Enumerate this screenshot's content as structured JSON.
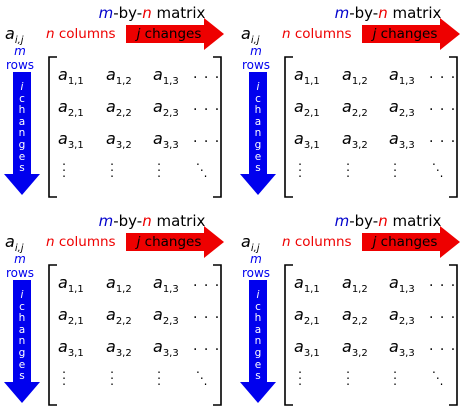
{
  "colors": {
    "red": "#ee0000",
    "blue": "#0000cc",
    "arrow_red": "#ee0000",
    "arrow_blue": "#0000ee"
  },
  "panels": [
    {
      "title": {
        "m": "m",
        "sep1": "-by-",
        "n": "n",
        "rest": " matrix"
      },
      "element": {
        "base": "a",
        "sub": "i,j"
      },
      "columns": {
        "n": "n",
        "text": " columns"
      },
      "j_changes": {
        "j": "j",
        "text": " changes"
      },
      "rows": {
        "m": "m",
        "text": "rows"
      },
      "i_changes": {
        "i": "i",
        "text": "changes"
      },
      "entries": [
        [
          "a",
          "1,1"
        ],
        [
          "a",
          "1,2"
        ],
        [
          "a",
          "1,3"
        ],
        [
          "a",
          "2,1"
        ],
        [
          "a",
          "2,2"
        ],
        [
          "a",
          "2,3"
        ],
        [
          "a",
          "3,1"
        ],
        [
          "a",
          "3,2"
        ],
        [
          "a",
          "3,3"
        ]
      ],
      "ellipsis_h": ". . .",
      "ellipsis_v": ".\n.\n.",
      "ellipsis_d": ".\n .\n  ."
    },
    {
      "title": {
        "m": "m",
        "sep1": "-by-",
        "n": "n",
        "rest": " matrix"
      },
      "element": {
        "base": "a",
        "sub": "i,j"
      },
      "columns": {
        "n": "n",
        "text": " columns"
      },
      "j_changes": {
        "j": "j",
        "text": " changes"
      },
      "rows": {
        "m": "m",
        "text": "rows"
      },
      "i_changes": {
        "i": "i",
        "text": "changes"
      },
      "entries": [
        [
          "a",
          "1,1"
        ],
        [
          "a",
          "1,2"
        ],
        [
          "a",
          "1,3"
        ],
        [
          "a",
          "2,1"
        ],
        [
          "a",
          "2,2"
        ],
        [
          "a",
          "2,3"
        ],
        [
          "a",
          "3,1"
        ],
        [
          "a",
          "3,2"
        ],
        [
          "a",
          "3,3"
        ]
      ],
      "ellipsis_h": ". . .",
      "ellipsis_v": ".\n.\n.",
      "ellipsis_d": ".\n .\n  ."
    },
    {
      "title": {
        "m": "m",
        "sep1": "-by-",
        "n": "n",
        "rest": " matrix"
      },
      "element": {
        "base": "a",
        "sub": "i,j"
      },
      "columns": {
        "n": "n",
        "text": " columns"
      },
      "j_changes": {
        "j": "j",
        "text": " changes"
      },
      "rows": {
        "m": "m",
        "text": "rows"
      },
      "i_changes": {
        "i": "i",
        "text": "changes"
      },
      "entries": [
        [
          "a",
          "1,1"
        ],
        [
          "a",
          "1,2"
        ],
        [
          "a",
          "1,3"
        ],
        [
          "a",
          "2,1"
        ],
        [
          "a",
          "2,2"
        ],
        [
          "a",
          "2,3"
        ],
        [
          "a",
          "3,1"
        ],
        [
          "a",
          "3,2"
        ],
        [
          "a",
          "3,3"
        ]
      ],
      "ellipsis_h": ". . .",
      "ellipsis_v": ".\n.\n.",
      "ellipsis_d": ".\n .\n  ."
    },
    {
      "title": {
        "m": "m",
        "sep1": "-by-",
        "n": "n",
        "rest": " matrix"
      },
      "element": {
        "base": "a",
        "sub": "i,j"
      },
      "columns": {
        "n": "n",
        "text": " columns"
      },
      "j_changes": {
        "j": "j",
        "text": " changes"
      },
      "rows": {
        "m": "m",
        "text": "rows"
      },
      "i_changes": {
        "i": "i",
        "text": "changes"
      },
      "entries": [
        [
          "a",
          "1,1"
        ],
        [
          "a",
          "1,2"
        ],
        [
          "a",
          "1,3"
        ],
        [
          "a",
          "2,1"
        ],
        [
          "a",
          "2,2"
        ],
        [
          "a",
          "2,3"
        ],
        [
          "a",
          "3,1"
        ],
        [
          "a",
          "3,2"
        ],
        [
          "a",
          "3,3"
        ]
      ],
      "ellipsis_h": ". . .",
      "ellipsis_v": ".\n.\n.",
      "ellipsis_d": ".\n .\n  ."
    }
  ]
}
